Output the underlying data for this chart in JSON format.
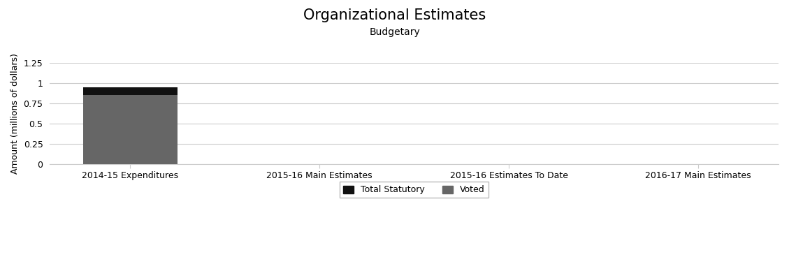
{
  "title": "Organizational Estimates",
  "subtitle": "Budgetary",
  "categories": [
    "2014-15 Expenditures",
    "2015-16 Main Estimates",
    "2015-16 Estimates To Date",
    "2016-17 Main Estimates"
  ],
  "voted_values": [
    0.852,
    0.001,
    0.001,
    0.001
  ],
  "statutory_values": [
    0.098,
    0.0,
    0.0,
    0.0
  ],
  "voted_color": "#666666",
  "statutory_color": "#111111",
  "ylabel": "Amount (millions of dollars)",
  "ylim": [
    0,
    1.25
  ],
  "yticks": [
    0,
    0.25,
    0.5,
    0.75,
    1,
    1.25
  ],
  "background_color": "#ffffff",
  "grid_color": "#cccccc",
  "bar_width": 0.5,
  "title_fontsize": 15,
  "subtitle_fontsize": 10,
  "axis_fontsize": 9,
  "tick_fontsize": 9,
  "legend_fontsize": 9
}
